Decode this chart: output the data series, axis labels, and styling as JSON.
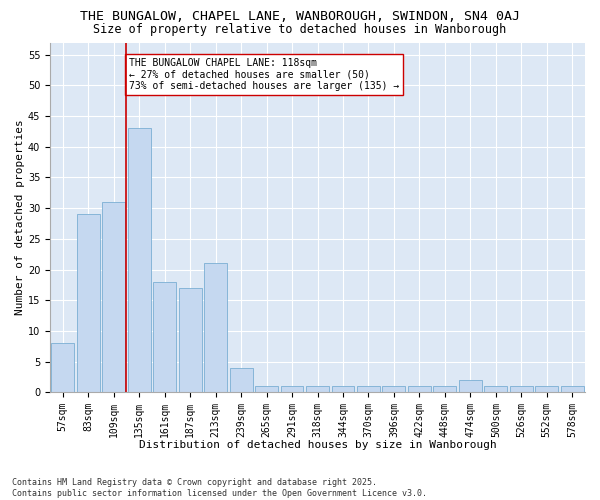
{
  "title1": "THE BUNGALOW, CHAPEL LANE, WANBOROUGH, SWINDON, SN4 0AJ",
  "title2": "Size of property relative to detached houses in Wanborough",
  "xlabel": "Distribution of detached houses by size in Wanborough",
  "ylabel": "Number of detached properties",
  "categories": [
    "57sqm",
    "83sqm",
    "109sqm",
    "135sqm",
    "161sqm",
    "187sqm",
    "213sqm",
    "239sqm",
    "265sqm",
    "291sqm",
    "318sqm",
    "344sqm",
    "370sqm",
    "396sqm",
    "422sqm",
    "448sqm",
    "474sqm",
    "500sqm",
    "526sqm",
    "552sqm",
    "578sqm"
  ],
  "values": [
    8,
    29,
    31,
    43,
    18,
    17,
    21,
    4,
    1,
    1,
    1,
    1,
    1,
    1,
    1,
    1,
    2,
    1,
    1,
    1,
    1
  ],
  "bar_color": "#c5d8f0",
  "bar_edge_color": "#7bafd4",
  "vline_x": 2.5,
  "vline_color": "#cc0000",
  "annotation_text": "THE BUNGALOW CHAPEL LANE: 118sqm\n← 27% of detached houses are smaller (50)\n73% of semi-detached houses are larger (135) →",
  "annotation_box_color": "#ffffff",
  "annotation_box_edge": "#cc0000",
  "ylim": [
    0,
    57
  ],
  "yticks": [
    0,
    5,
    10,
    15,
    20,
    25,
    30,
    35,
    40,
    45,
    50,
    55
  ],
  "bg_color": "#dde8f5",
  "footer1": "Contains HM Land Registry data © Crown copyright and database right 2025.",
  "footer2": "Contains public sector information licensed under the Open Government Licence v3.0.",
  "title1_fontsize": 9.5,
  "title2_fontsize": 8.5,
  "xlabel_fontsize": 8,
  "ylabel_fontsize": 8,
  "ann_fontsize": 7,
  "tick_fontsize": 7,
  "footer_fontsize": 6
}
